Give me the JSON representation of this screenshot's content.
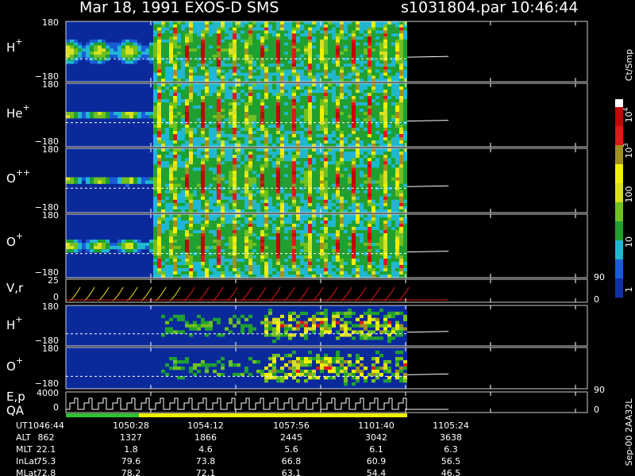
{
  "header": {
    "title": "Mar 18, 1991   EXOS-D SMS",
    "file": "s1031804.par  10:46:44"
  },
  "panels": [
    {
      "label": "H",
      "sup": "+",
      "top": "180",
      "bottom": "−180"
    },
    {
      "label": "He",
      "sup": "+",
      "top": "180",
      "bottom": "−180"
    },
    {
      "label": "O",
      "sup": "++",
      "top": "180",
      "bottom": "−180"
    },
    {
      "label": "O",
      "sup": "+",
      "top": "180",
      "bottom": "−180"
    },
    {
      "label": "V,r",
      "top": "25",
      "bottom": "0",
      "right_top": "90",
      "right_bottom": "0"
    },
    {
      "label": "H",
      "sup": "+",
      "top": "180",
      "bottom": "−180"
    },
    {
      "label": "O",
      "sup": "+",
      "top": "180",
      "bottom": "−180"
    },
    {
      "label": "E,p",
      "label2": "QA",
      "top": "4000",
      "bottom": "0",
      "right_top": "90",
      "right_bottom": "0"
    }
  ],
  "colorbar": {
    "unit": "Ct/Smp",
    "labels": [
      {
        "base": "10",
        "sup": "4"
      },
      {
        "base": "10",
        "sup": "3"
      },
      {
        "base": "100"
      },
      {
        "base": "10"
      },
      {
        "base": "1"
      }
    ]
  },
  "table": {
    "rows": [
      [
        "UT",
        "1046:44",
        "1050:28",
        "1054:12",
        "1057:56",
        "1101:40",
        "1105:24"
      ],
      [
        "ALT",
        "862",
        "1327",
        "1866",
        "2445",
        "3042",
        "3638"
      ],
      [
        "MLT",
        "22.1",
        "1.8",
        "4.6",
        "5.6",
        "6.1",
        "6.3"
      ],
      [
        "InLat",
        "75.3",
        "79.6",
        "73.8",
        "66.8",
        "60.9",
        "56.5"
      ],
      [
        "MLat",
        "72.8",
        "78.2",
        "72.1",
        "63.1",
        "54.4",
        "46.5"
      ]
    ]
  },
  "footer": "Sep-00  2AA32L"
}
